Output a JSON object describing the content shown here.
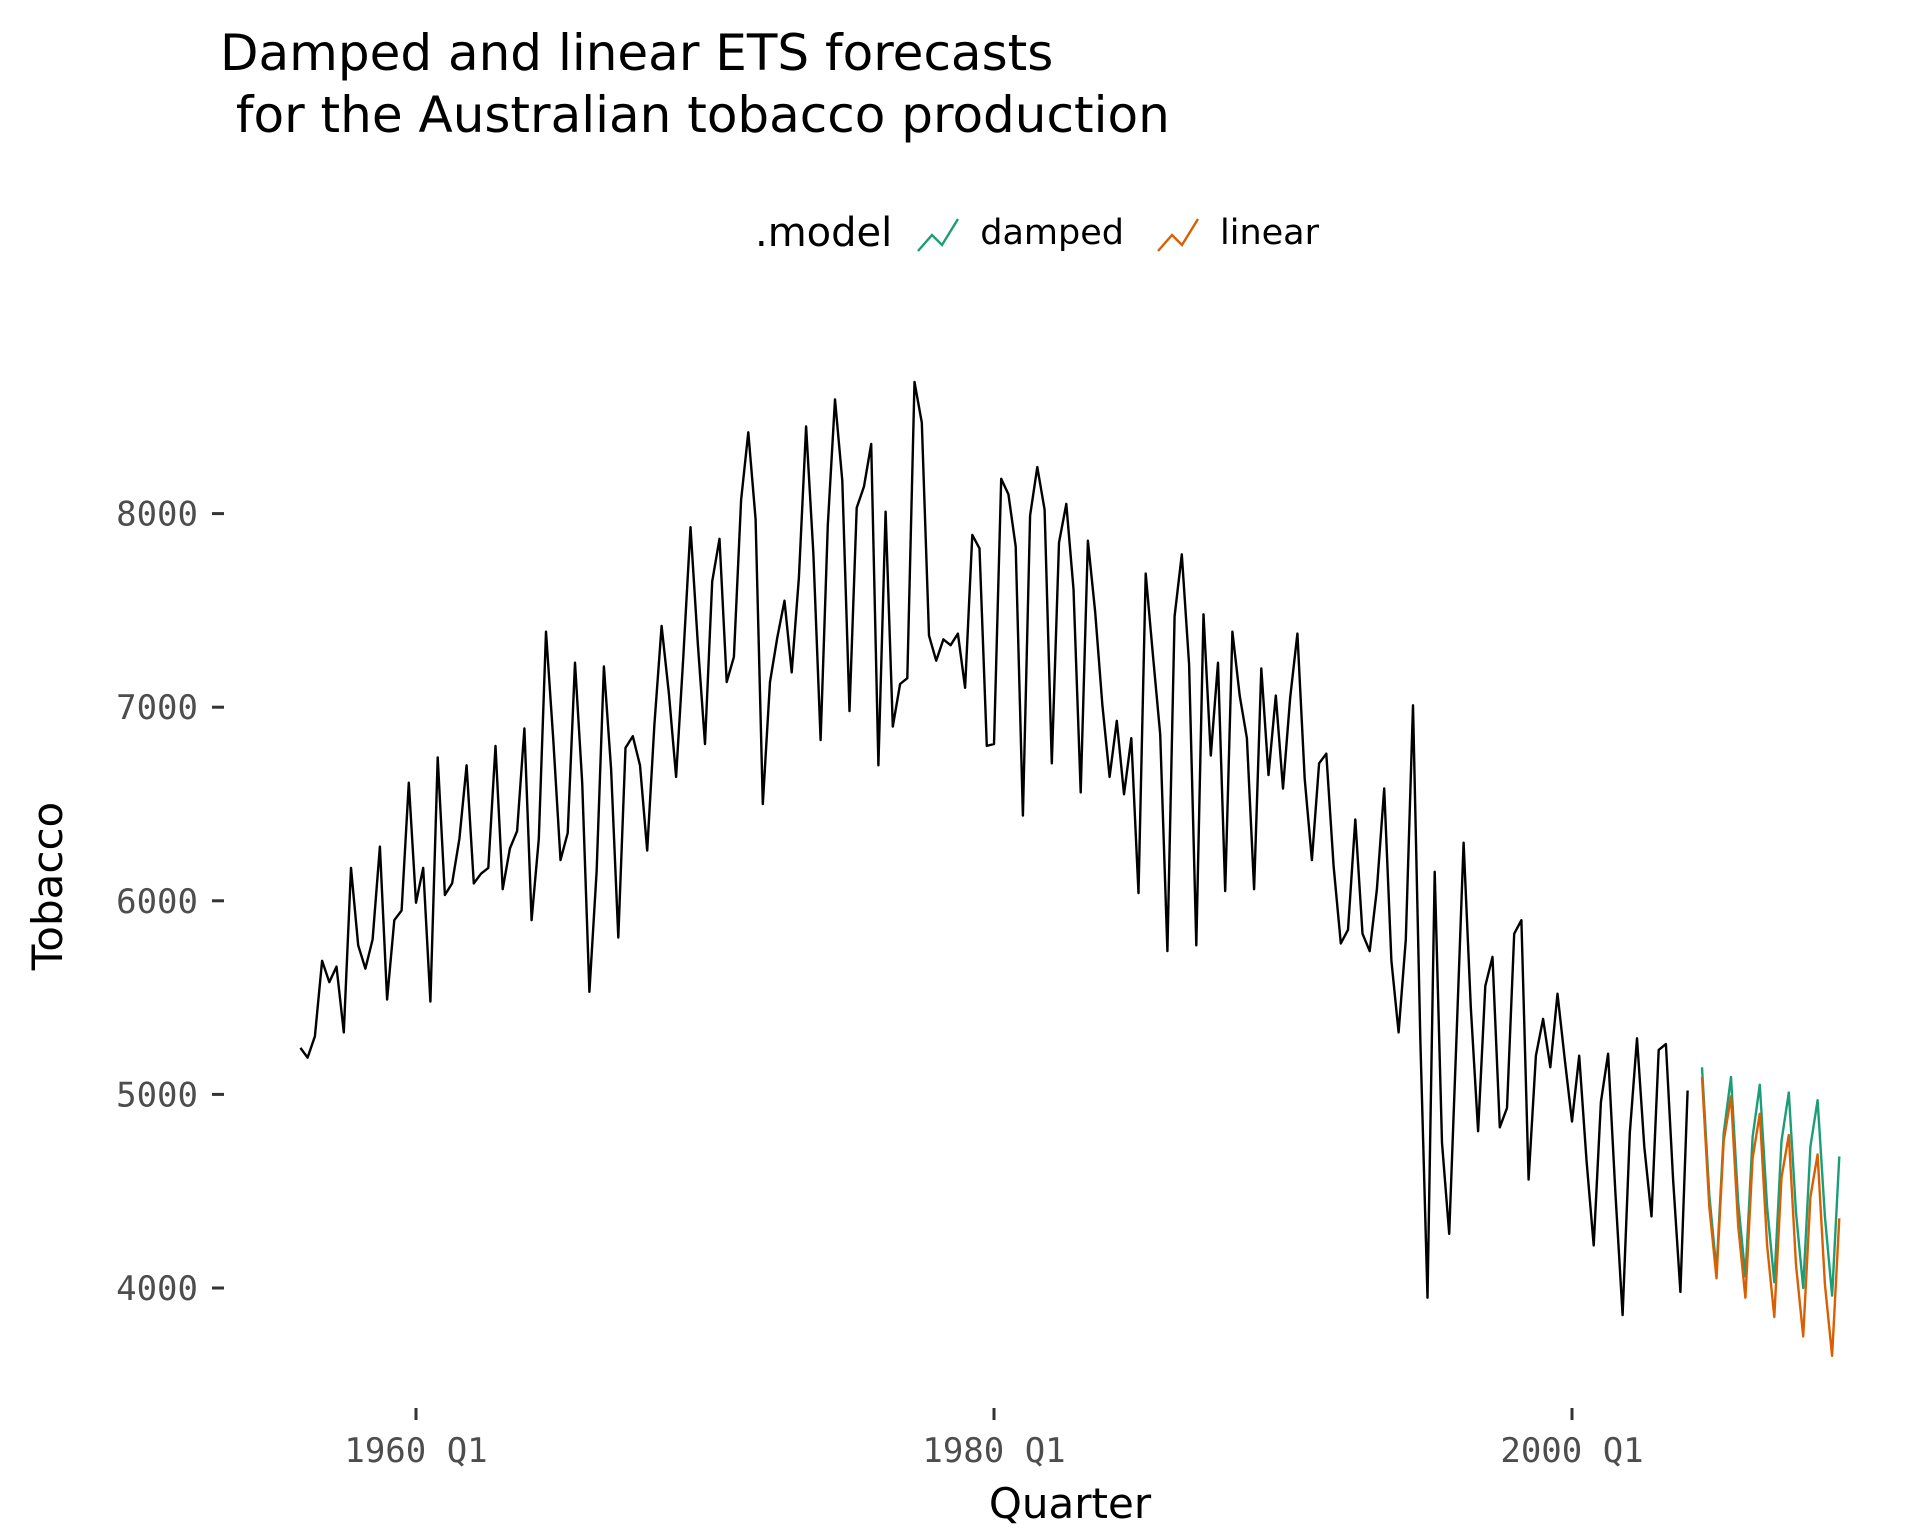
{
  "chart_data": {
    "type": "line",
    "title": "Damped and linear ETS forecasts\n for the Australian tobacco production",
    "xlabel": "Quarter",
    "ylabel": "Tobacco",
    "xlim": [
      1956.0,
      2009.0
    ],
    "ylim": [
      3400,
      8900
    ],
    "grid": false,
    "legend_position": "top",
    "legend_title": ".model",
    "x_ticks": [
      {
        "value": 1960.0,
        "label": "1960 Q1"
      },
      {
        "value": 1980.0,
        "label": "1980 Q1"
      },
      {
        "value": 2000.0,
        "label": "2000 Q1"
      }
    ],
    "y_ticks": [
      {
        "value": 4000,
        "label": "4000"
      },
      {
        "value": 5000,
        "label": "5000"
      },
      {
        "value": 6000,
        "label": "6000"
      },
      {
        "value": 7000,
        "label": "7000"
      },
      {
        "value": 8000,
        "label": "8000"
      }
    ],
    "history": {
      "start": 1956.0,
      "step": 0.25,
      "color": "#000000",
      "values": [
        5240,
        5190,
        5300,
        5690,
        5580,
        5660,
        5320,
        6170,
        5770,
        5650,
        5800,
        6280,
        5490,
        5900,
        5950,
        6610,
        5990,
        6170,
        5480,
        6740,
        6030,
        6090,
        6320,
        6700,
        6090,
        6140,
        6170,
        6800,
        6060,
        6270,
        6360,
        6890,
        5900,
        6320,
        7390,
        6830,
        6210,
        6350,
        7230,
        6610,
        5530,
        6150,
        7210,
        6680,
        5810,
        6790,
        6850,
        6700,
        6260,
        6910,
        7420,
        7070,
        6640,
        7260,
        7930,
        7330,
        6810,
        7650,
        7870,
        7130,
        7260,
        8070,
        8420,
        7970,
        6500,
        7130,
        7360,
        7550,
        7180,
        7670,
        8450,
        7790,
        6830,
        7940,
        8590,
        8170,
        6980,
        8030,
        8140,
        8360,
        6700,
        8010,
        6900,
        7120,
        7150,
        8680,
        8470,
        7370,
        7240,
        7350,
        7320,
        7380,
        7100,
        7890,
        7820,
        6800,
        6810,
        8180,
        8100,
        7830,
        6440,
        7990,
        8240,
        8020,
        6710,
        7850,
        8050,
        7610,
        6560,
        7860,
        7490,
        7010,
        6640,
        6930,
        6550,
        6840,
        6040,
        7690,
        7270,
        6860,
        5740,
        7470,
        7790,
        7220,
        5770,
        7480,
        6750,
        7230,
        6050,
        7390,
        7060,
        6840,
        6060,
        7200,
        6650,
        7060,
        6580,
        7050,
        7380,
        6630,
        6210,
        6710,
        6760,
        6180,
        5780,
        5850,
        6420,
        5830,
        5740,
        6060,
        6580,
        5690,
        5320,
        5800,
        7010,
        5290,
        3950,
        6150,
        4750,
        4280,
        5280,
        6300,
        5450,
        4810,
        5560,
        5710,
        4830,
        4930,
        5830,
        5900,
        4560,
        5200,
        5390,
        5140,
        5520,
        5180,
        4860,
        5200,
        4660,
        4220,
        4960,
        5210,
        4500,
        3860,
        4800,
        5290,
        4730,
        4370,
        5230,
        5260,
        4560,
        3980,
        5020
      ]
    },
    "series": [
      {
        "name": "damped",
        "color": "#1b9e77",
        "start": 2004.5,
        "step": 0.25,
        "values": [
          5140,
          4480,
          4090,
          4800,
          5090,
          4440,
          4060,
          4780,
          5050,
          4420,
          4030,
          4760,
          5010,
          4390,
          4000,
          4730,
          4970,
          4370,
          3960,
          4680
        ]
      },
      {
        "name": "linear",
        "color": "#d95f02",
        "start": 2004.5,
        "step": 0.25,
        "values": [
          5090,
          4420,
          4050,
          4760,
          4990,
          4320,
          3950,
          4670,
          4900,
          4220,
          3850,
          4570,
          4790,
          4120,
          3750,
          4470,
          4690,
          4020,
          3650,
          4360
        ]
      }
    ]
  }
}
